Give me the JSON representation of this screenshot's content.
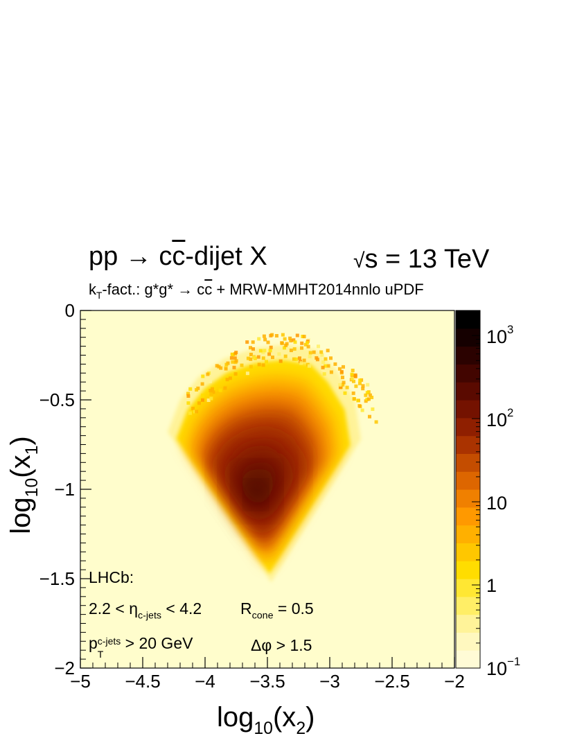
{
  "chart_data": {
    "type": "heatmap",
    "title": {
      "process_prefix": "pp → c",
      "process_cbar": "c",
      "process_suffix": "-dijet X",
      "energy_sqrt": "√",
      "energy_rest": "s = 13 TeV"
    },
    "subtitle": {
      "k": "k",
      "k_sub": "T",
      "text1": "-fact.: g*g* → c",
      "cbar": "c",
      "text2": " + MRW-MMHT2014nnlo uPDF"
    },
    "xlabel": {
      "base": "log",
      "sub10": "10",
      "open": "(x",
      "sub": "2",
      "close": ")"
    },
    "ylabel": {
      "base": "log",
      "sub10": "10",
      "open": "(x",
      "sub": "1",
      "close": ")"
    },
    "xlim": [
      -5,
      -2
    ],
    "ylim": [
      -2,
      0
    ],
    "x_ticks": [
      -5,
      -4.5,
      -4,
      -3.5,
      -3,
      -2.5,
      -2
    ],
    "x_tick_labels": [
      "−5",
      "−4.5",
      "−4",
      "−3.5",
      "−3",
      "−2.5",
      "−2"
    ],
    "y_ticks": [
      0,
      -0.5,
      -1,
      -1.5,
      -2
    ],
    "y_tick_labels": [
      "0",
      "−0.5",
      "−1",
      "−1.5",
      "−2"
    ],
    "z_scale": "log",
    "zlim": [
      0.1,
      2000
    ],
    "z_ticks": [
      0.1,
      1,
      10,
      100,
      1000
    ],
    "colorbar_labels": {
      "l0": {
        "base": "10",
        "exp": "−1"
      },
      "l1": "1",
      "l2": "10",
      "l3": {
        "base": "10",
        "exp": "2"
      },
      "l4": {
        "base": "10",
        "exp": "3"
      }
    },
    "colormap": [
      "#fffbd6",
      "#fff8bf",
      "#fff399",
      "#ffee66",
      "#ffe733",
      "#ffdd00",
      "#ffc700",
      "#ffb000",
      "#ff9900",
      "#f08000",
      "#dd6600",
      "#c44d00",
      "#aa3300",
      "#8f1f00",
      "#741200",
      "#5a0a00",
      "#420500",
      "#2b0200",
      "#150000",
      "#000000"
    ],
    "background_color": "#fffdcc",
    "density_region": {
      "boundary": [
        [
          -3.47,
          -1.52
        ],
        [
          -4.3,
          -0.68
        ],
        [
          -4.2,
          -0.5
        ],
        [
          -4.05,
          -0.37
        ],
        [
          -3.85,
          -0.27
        ],
        [
          -3.6,
          -0.21
        ],
        [
          -3.35,
          -0.19
        ],
        [
          -3.1,
          -0.22
        ],
        [
          -2.95,
          -0.33
        ],
        [
          -2.8,
          -0.5
        ],
        [
          -2.75,
          -0.72
        ]
      ],
      "peak": [
        -3.6,
        -1.05
      ],
      "peak_value": 300,
      "scatter_extent": [
        [
          -3.0,
          -0.35
        ],
        [
          -2.5,
          -0.2
        ]
      ]
    },
    "annotations": {
      "experiment": "LHCb:",
      "eta": {
        "pre": "2.2 < ",
        "sym": "η",
        "sub": "c-jets",
        "post": " < 4.2"
      },
      "rcone": {
        "sym": "R",
        "sub": "cone",
        "post": " = 0.5"
      },
      "pt": {
        "sym": "p",
        "sub": "T",
        "sup": "c-jets",
        "post": " > 20 GeV"
      },
      "dphi": "Δφ > 1.5"
    }
  }
}
